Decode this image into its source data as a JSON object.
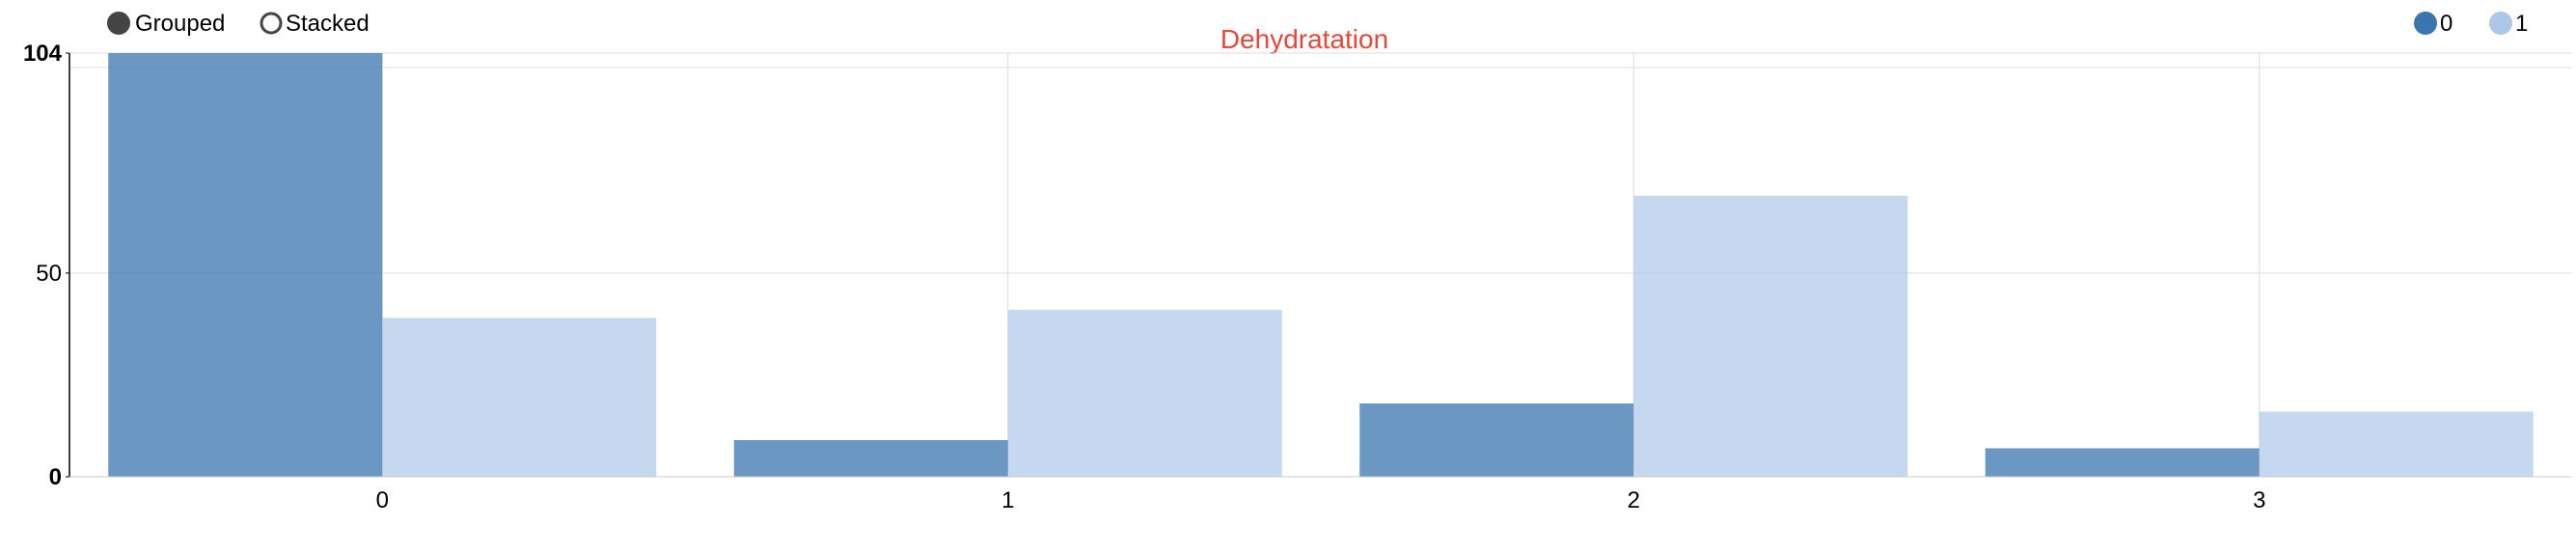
{
  "controls": {
    "grouped_label": "Grouped",
    "stacked_label": "Stacked",
    "selected": "grouped"
  },
  "legend": {
    "placement": "top-right",
    "items": [
      {
        "label": "0",
        "color": "#3a75af"
      },
      {
        "label": "1",
        "color": "#aec7e8"
      }
    ]
  },
  "chart_data": {
    "type": "bar",
    "title": "Dehydratation",
    "title_color": "#e8473a",
    "xlabel": "",
    "ylabel": "",
    "categories": [
      "0",
      "1",
      "2",
      "3"
    ],
    "series": [
      {
        "name": "0",
        "color": "#3a75af",
        "values": [
          104,
          9,
          18,
          7
        ]
      },
      {
        "name": "1",
        "color": "#aec7e8",
        "values": [
          39,
          41,
          69,
          16
        ]
      }
    ],
    "ylim": [
      0,
      104
    ],
    "yticks": [
      0,
      50,
      104
    ],
    "grid": true,
    "mode": "grouped"
  }
}
